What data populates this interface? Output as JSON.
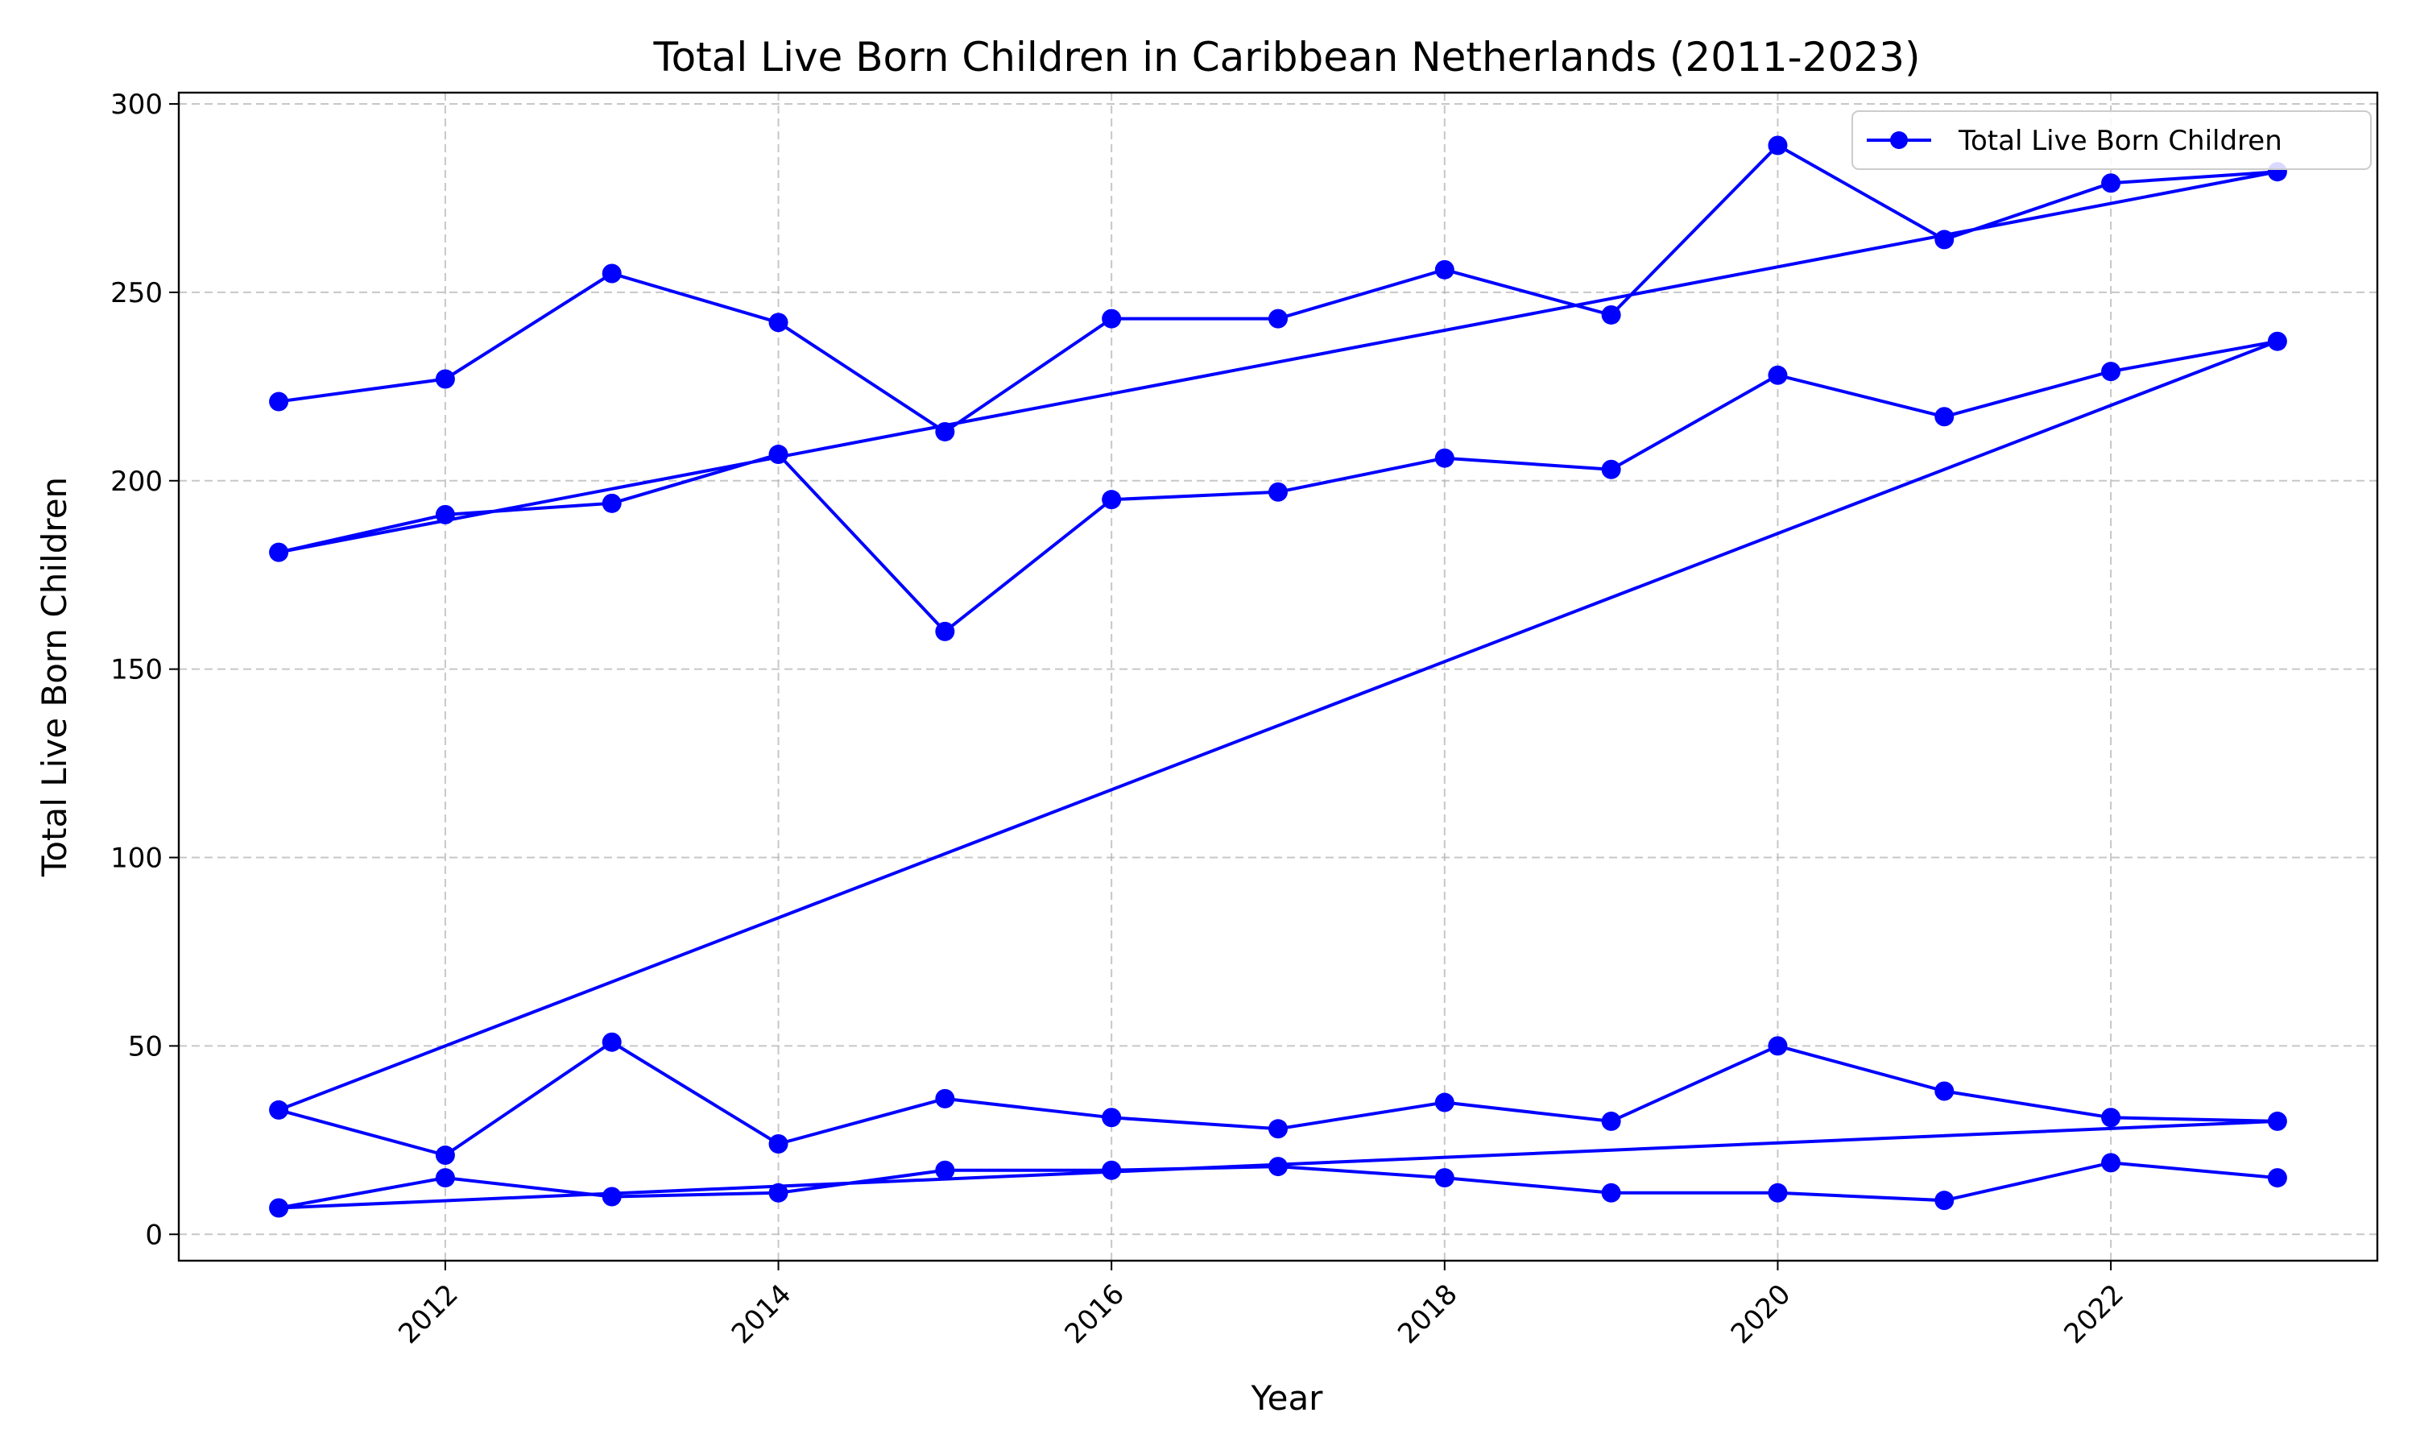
{
  "chart_data": {
    "type": "line",
    "title": "Total Live Born Children in Caribbean Netherlands (2011-2023)",
    "xlabel": "Year",
    "ylabel": "Total Live Born Children",
    "xlim": [
      2010.4,
      2023.6
    ],
    "ylim": [
      -7,
      303
    ],
    "xticks": [
      2012,
      2014,
      2016,
      2018,
      2020,
      2022
    ],
    "yticks": [
      0,
      50,
      100,
      150,
      200,
      250,
      300
    ],
    "grid": true,
    "legend": {
      "position": "top-right",
      "entries": [
        "Total Live Born Children"
      ]
    },
    "series": [
      {
        "name": "Total Live Born Children",
        "color": "#0000ff",
        "marker": "circle",
        "x": [
          2011,
          2012,
          2013,
          2014,
          2015,
          2016,
          2017,
          2018,
          2019,
          2020,
          2021,
          2022,
          2023,
          2011,
          2012,
          2013,
          2014,
          2015,
          2016,
          2017,
          2018,
          2019,
          2020,
          2021,
          2022,
          2023,
          2011,
          2012,
          2013,
          2014,
          2015,
          2016,
          2017,
          2018,
          2019,
          2020,
          2021,
          2022,
          2023,
          2011,
          2012,
          2013,
          2014,
          2015,
          2016,
          2017,
          2018,
          2019,
          2020,
          2021,
          2022,
          2023
        ],
        "y": [
          221,
          227,
          255,
          242,
          213,
          243,
          243,
          256,
          244,
          289,
          264,
          279,
          282,
          181,
          191,
          194,
          207,
          160,
          195,
          197,
          206,
          203,
          228,
          217,
          229,
          237,
          33,
          21,
          51,
          24,
          36,
          31,
          28,
          35,
          30,
          50,
          38,
          31,
          30,
          7,
          15,
          10,
          11,
          17,
          17,
          18,
          15,
          11,
          11,
          9,
          19,
          15
        ]
      }
    ]
  }
}
